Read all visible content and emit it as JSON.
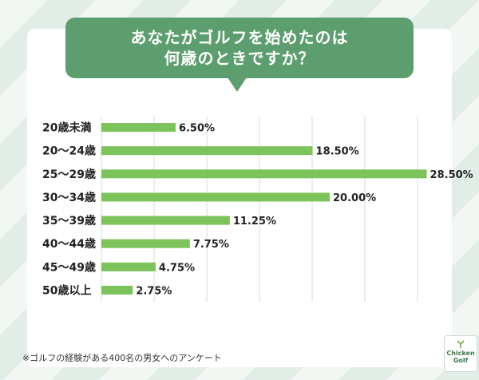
{
  "title_lines": [
    "あなたがゴルフを始めたのは",
    "何歳のときですか？"
  ],
  "footnote": "※ゴルフの経験がある400名の男女へのアンケート",
  "logo_text": [
    "Chicken",
    "Golf"
  ],
  "colors": {
    "bar": "#7dc35b",
    "banner": "#5c9e6e",
    "grid": "#d6dbd8"
  },
  "chart_data": {
    "type": "bar",
    "orientation": "horizontal",
    "categories": [
      "20歳未満",
      "20～24歳",
      "25～29歳",
      "30～34歳",
      "35～39歳",
      "40～44歳",
      "45～49歳",
      "50歳以上"
    ],
    "values": [
      6.5,
      18.5,
      28.5,
      20.0,
      11.25,
      7.75,
      4.75,
      2.75
    ],
    "value_labels": [
      "6.50%",
      "18.50%",
      "28.50%",
      "20.00%",
      "11.25%",
      "7.75%",
      "4.75%",
      "2.75%"
    ],
    "xlim": [
      0,
      30
    ],
    "grid": true
  }
}
